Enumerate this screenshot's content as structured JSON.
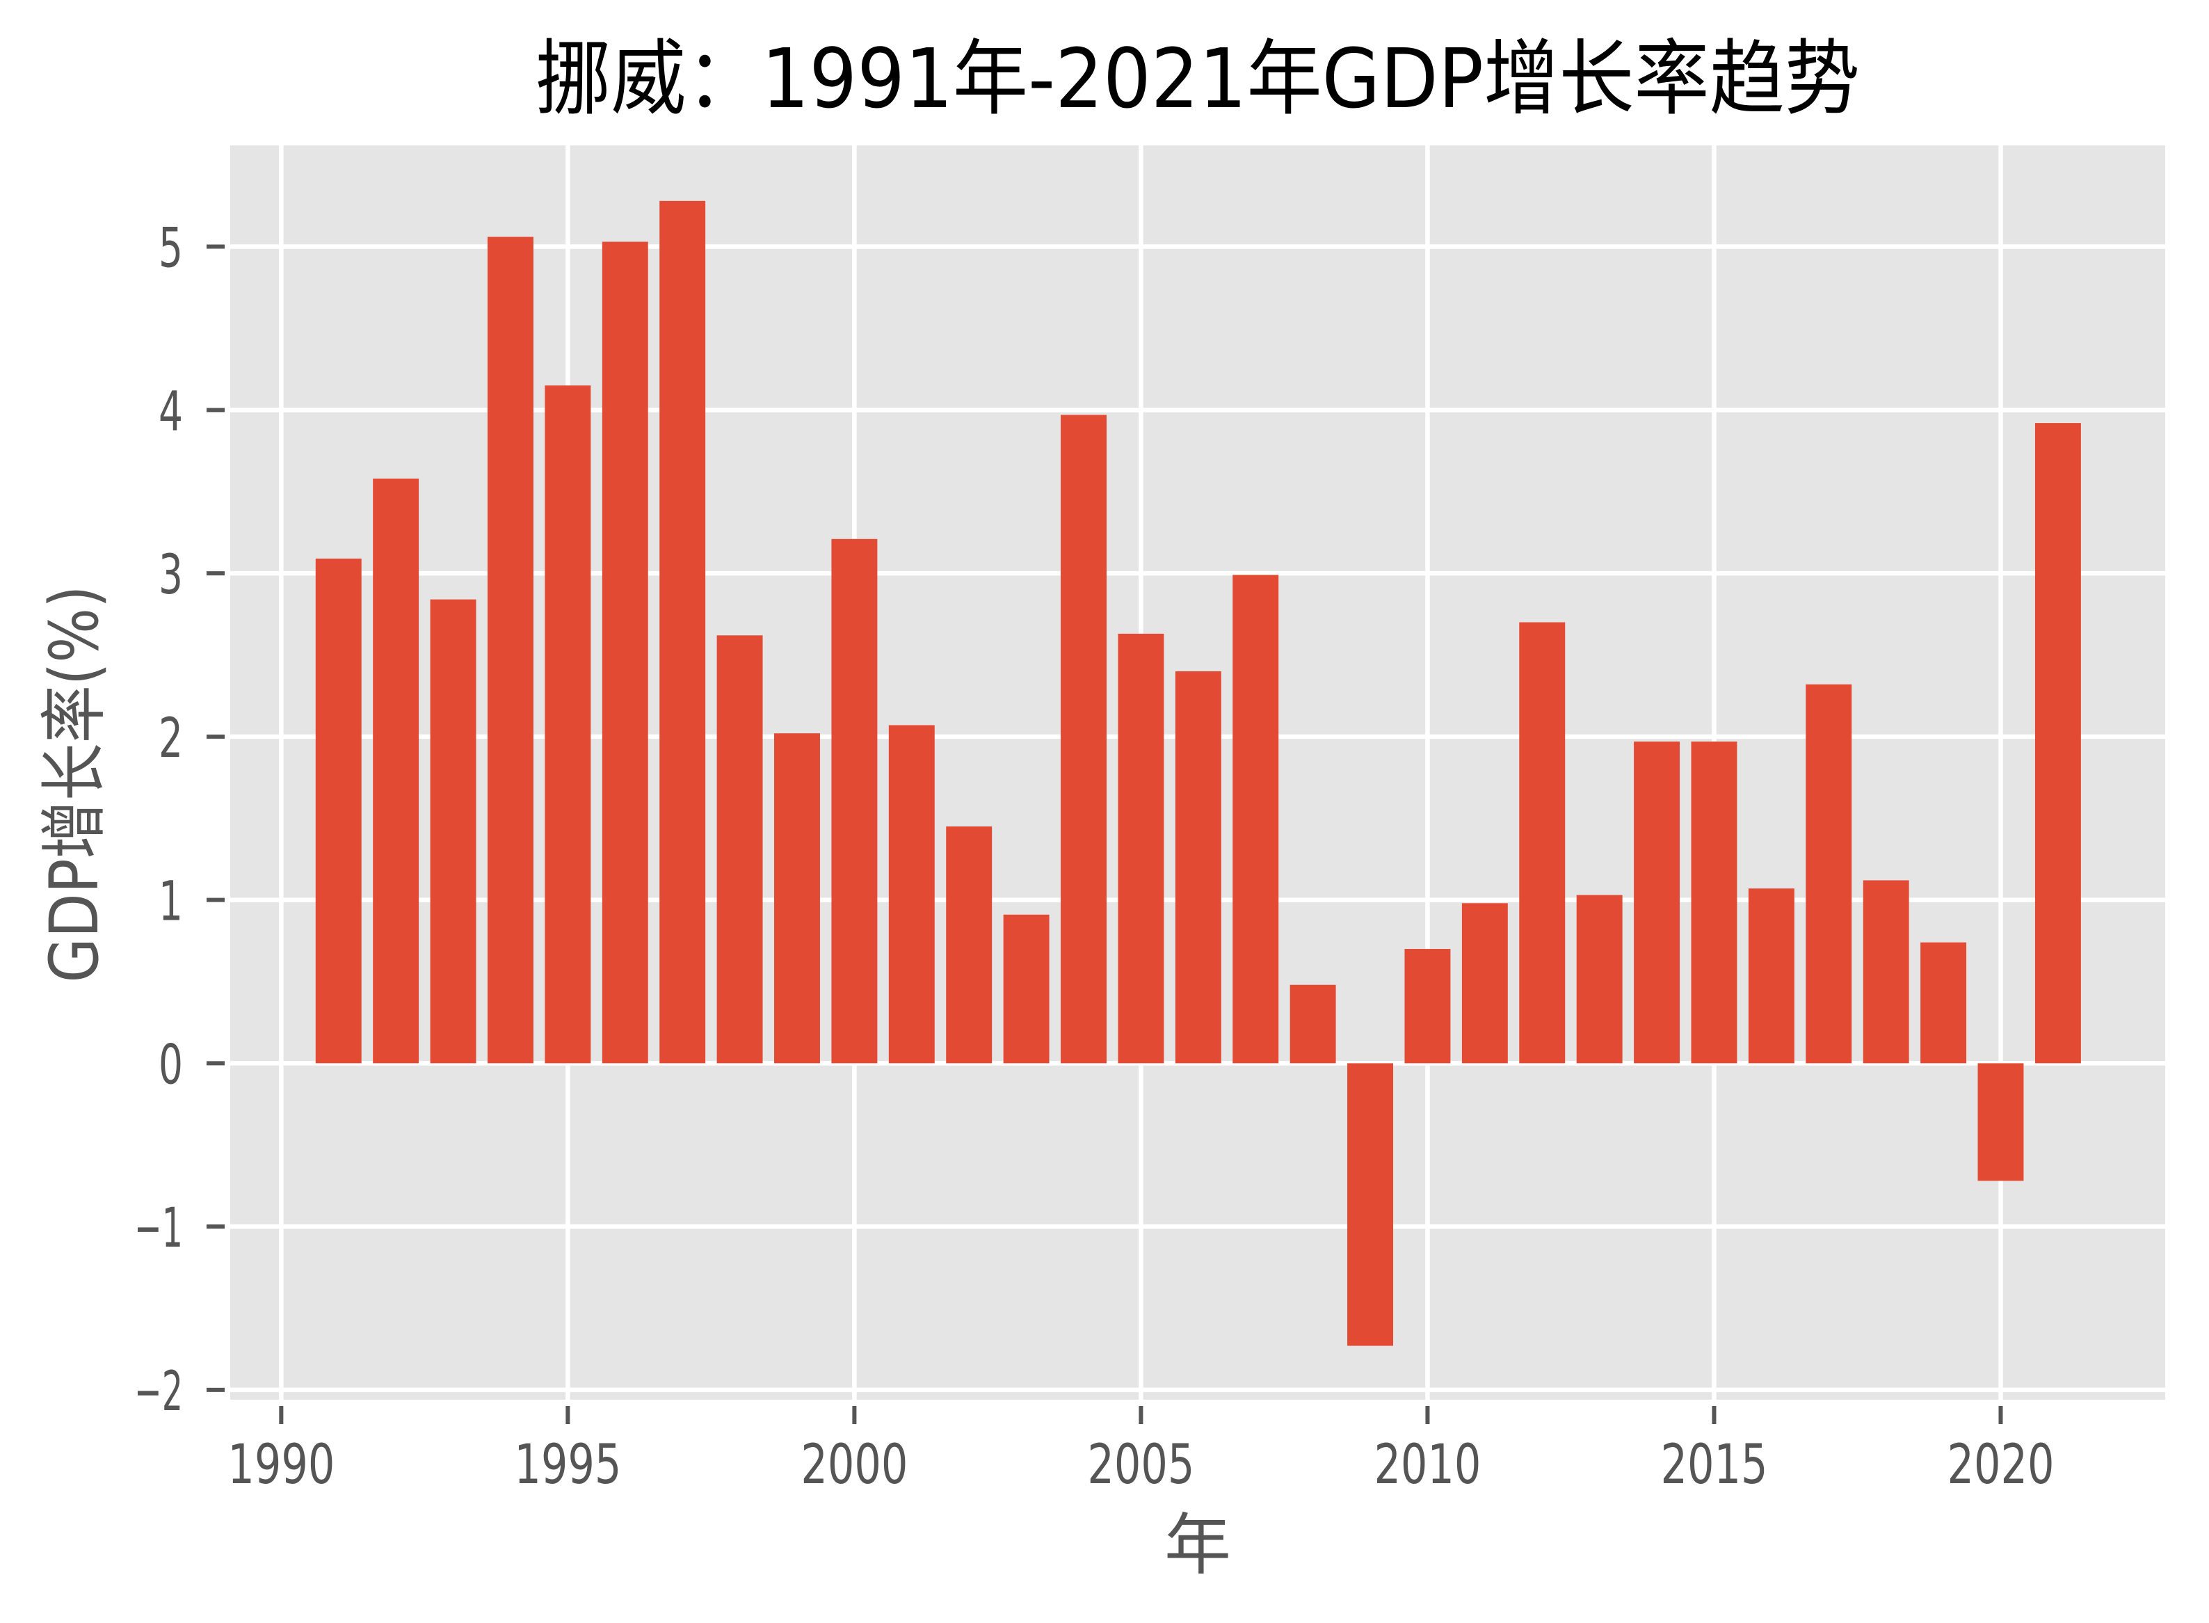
{
  "chart_data": {
    "type": "bar",
    "title": "挪威：1991年-2021年GDP增长率趋势",
    "xlabel": "年",
    "ylabel": "GDP增长率(%)",
    "categories": [
      1991,
      1992,
      1993,
      1994,
      1995,
      1996,
      1997,
      1998,
      1999,
      2000,
      2001,
      2002,
      2003,
      2004,
      2005,
      2006,
      2007,
      2008,
      2009,
      2010,
      2011,
      2012,
      2013,
      2014,
      2015,
      2016,
      2017,
      2018,
      2019,
      2020,
      2021
    ],
    "values": [
      3.09,
      3.58,
      2.84,
      5.06,
      4.15,
      5.03,
      5.28,
      2.62,
      2.02,
      3.21,
      2.07,
      1.45,
      0.91,
      3.97,
      2.63,
      2.4,
      2.99,
      0.48,
      -1.73,
      0.7,
      0.98,
      2.7,
      1.03,
      1.97,
      1.97,
      1.07,
      2.32,
      1.12,
      0.74,
      -0.72,
      3.92
    ],
    "xticks": {
      "values": [
        1990,
        1995,
        2000,
        2005,
        2010,
        2015,
        2020
      ],
      "labels": [
        "1990",
        "1995",
        "2000",
        "2005",
        "2010",
        "2015",
        "2020"
      ]
    },
    "yticks": {
      "values": [
        -2,
        -1,
        0,
        1,
        2,
        3,
        4,
        5
      ],
      "labels": [
        "−2",
        "−1",
        "0",
        "1",
        "2",
        "3",
        "4",
        "5"
      ]
    },
    "xlim": [
      1989.11,
      2022.87
    ],
    "ylim": [
      -2.06,
      5.62
    ],
    "bar_width": 0.8,
    "grid": true,
    "legend": null,
    "colors": {
      "bar": "#E24A33",
      "plot_background": "#E5E5E5",
      "grid": "#FFFFFF",
      "tick": "#555555",
      "tick_label": "#555555",
      "axis_label": "#555555",
      "title": "#000000"
    }
  }
}
